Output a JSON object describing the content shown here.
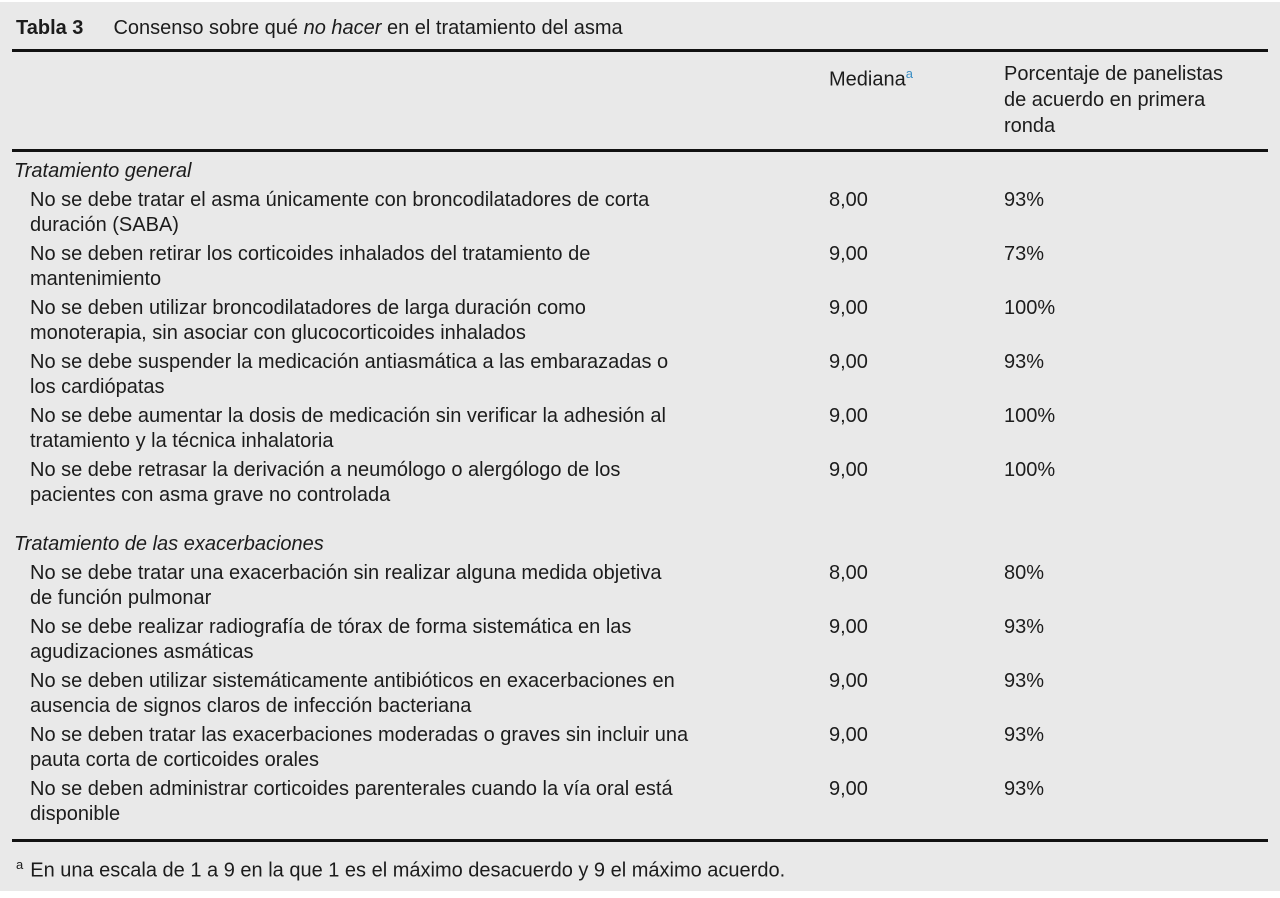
{
  "table": {
    "label": "Tabla 3",
    "title": {
      "pre": "Consenso sobre qué ",
      "italic": "no hacer",
      "post": " en el tratamiento del asma"
    },
    "header": {
      "median_label": "Mediana",
      "median_superscript": "a",
      "percent_label": "Porcentaje de panelistas de acuerdo en primera ronda"
    },
    "sections": [
      {
        "name": "Tratamiento general",
        "rows": [
          {
            "lines": [
              "No se debe tratar el asma únicamente con broncodilatadores de corta",
              "duración (SABA)"
            ],
            "median": "8,00",
            "percent": "93%"
          },
          {
            "lines": [
              "No se deben retirar los corticoides inhalados del tratamiento de",
              "mantenimiento"
            ],
            "median": "9,00",
            "percent": "73%"
          },
          {
            "lines": [
              "No se deben utilizar broncodilatadores de larga duración como",
              "monoterapia, sin asociar con glucocorticoides inhalados"
            ],
            "median": "9,00",
            "percent": "100%"
          },
          {
            "lines": [
              "No se debe suspender la medicación antiasmática a las embarazadas o",
              "los cardiópatas"
            ],
            "median": "9,00",
            "percent": "93%"
          },
          {
            "lines": [
              "No se debe aumentar la dosis de medicación sin verificar la adhesión al",
              "tratamiento y la técnica inhalatoria"
            ],
            "median": "9,00",
            "percent": "100%"
          },
          {
            "lines": [
              "No se debe retrasar la derivación a neumólogo o alergólogo de los",
              "pacientes con asma grave no controlada"
            ],
            "median": "9,00",
            "percent": "100%"
          }
        ]
      },
      {
        "name": "Tratamiento de las exacerbaciones",
        "rows": [
          {
            "lines": [
              "No se debe tratar una exacerbación sin realizar alguna medida objetiva",
              "de función pulmonar"
            ],
            "median": "8,00",
            "percent": "80%"
          },
          {
            "lines": [
              "No se debe realizar radiografía de tórax de forma sistemática en las",
              "agudizaciones asmáticas"
            ],
            "median": "9,00",
            "percent": "93%"
          },
          {
            "lines": [
              "No se deben utilizar sistemáticamente antibióticos en exacerbaciones en",
              "ausencia de signos claros de infección bacteriana"
            ],
            "median": "9,00",
            "percent": "93%"
          },
          {
            "lines": [
              "No se deben tratar las exacerbaciones moderadas o graves sin incluir una",
              "pauta corta de corticoides orales"
            ],
            "median": "9,00",
            "percent": "93%"
          },
          {
            "lines": [
              "No se deben administrar corticoides parenterales cuando la vía oral está",
              "disponible"
            ],
            "median": "9,00",
            "percent": "93%"
          }
        ]
      }
    ],
    "footnote": {
      "marker": "a",
      "text": "En una escala de 1 a 9 en la que 1 es el máximo desacuerdo y 9 el máximo acuerdo."
    },
    "colors": {
      "panel_background": "#e9e9e9",
      "text": "#1c1c1c",
      "rule": "#121212",
      "superscript": "#3d8fc4"
    }
  }
}
